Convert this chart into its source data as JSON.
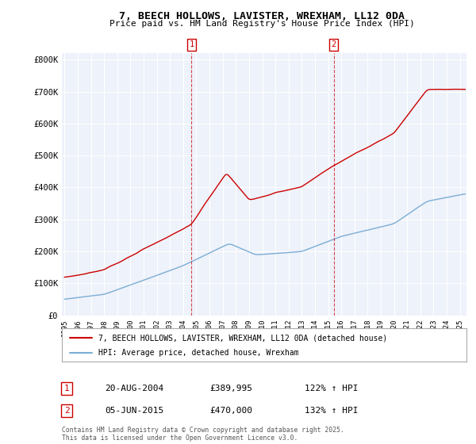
{
  "title": "7, BEECH HOLLOWS, LAVISTER, WREXHAM, LL12 0DA",
  "subtitle": "Price paid vs. HM Land Registry's House Price Index (HPI)",
  "ylabel_ticks": [
    "£0",
    "£100K",
    "£200K",
    "£300K",
    "£400K",
    "£500K",
    "£600K",
    "£700K",
    "£800K"
  ],
  "ytick_values": [
    0,
    100000,
    200000,
    300000,
    400000,
    500000,
    600000,
    700000,
    800000
  ],
  "ylim": [
    0,
    820000
  ],
  "xlim_start": 1994.8,
  "xlim_end": 2025.5,
  "marker1_x": 2004.64,
  "marker1_label": "1",
  "marker1_date": "20-AUG-2004",
  "marker1_price": "£389,995",
  "marker1_hpi": "122% ↑ HPI",
  "marker2_x": 2015.43,
  "marker2_label": "2",
  "marker2_date": "05-JUN-2015",
  "marker2_price": "£470,000",
  "marker2_hpi": "132% ↑ HPI",
  "property_color": "#cc0000",
  "hpi_color": "#7aadd4",
  "background_color": "#eef2fa",
  "grid_color": "#ffffff",
  "legend_label_property": "7, BEECH HOLLOWS, LAVISTER, WREXHAM, LL12 0DA (detached house)",
  "legend_label_hpi": "HPI: Average price, detached house, Wrexham",
  "footnote": "Contains HM Land Registry data © Crown copyright and database right 2025.\nThis data is licensed under the Open Government Licence v3.0."
}
